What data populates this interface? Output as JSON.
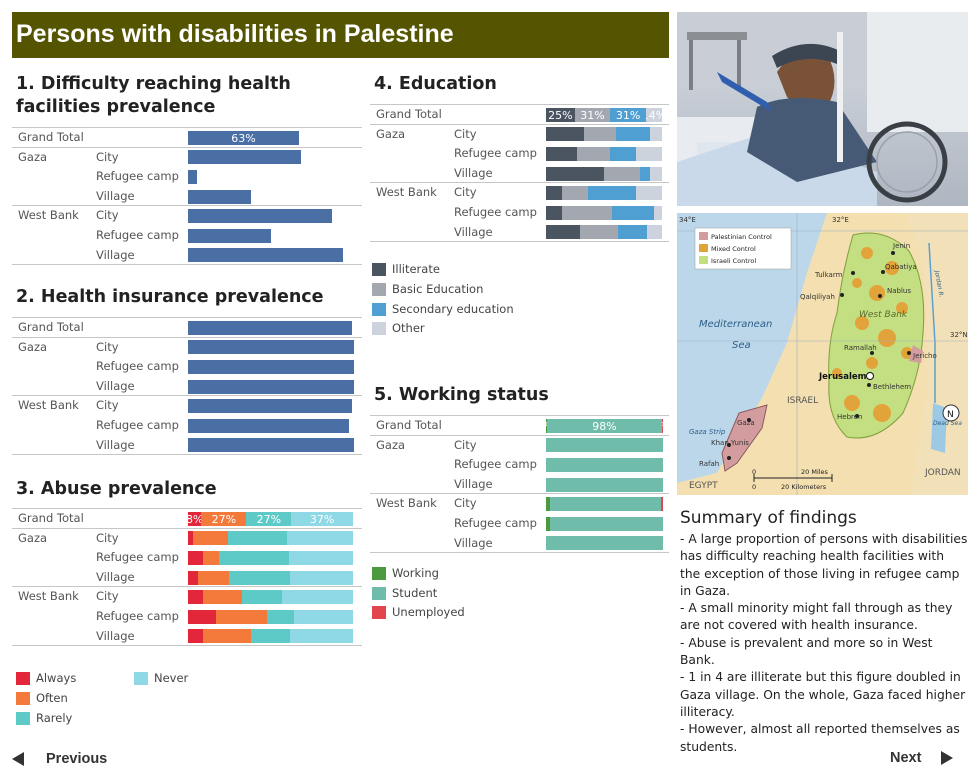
{
  "header": {
    "title": "Persons with disabilities in Palestine"
  },
  "colors": {
    "title_bg": "#555400",
    "health_bar": "#4a6fa5",
    "always": "#e2273a",
    "often": "#f47a3c",
    "rarely": "#5ecac7",
    "never": "#8fd8e6",
    "illiterate": "#4b5562",
    "basic": "#a3a8b0",
    "secondary": "#4f9fd3",
    "other": "#ccd3dc",
    "working": "#4c9a3f",
    "student": "#6fbcab",
    "unemployed": "#e2454e"
  },
  "row_labels": {
    "grand_total": "Grand Total",
    "gaza": "Gaza",
    "west_bank": "West Bank",
    "city": "City",
    "refugee_camp": "Refugee camp",
    "village": "Village"
  },
  "sections": {
    "health_access": "1. Difficulty reaching health facilities prevalence",
    "insurance": "2. Health insurance prevalence",
    "abuse": "3. Abuse prevalence",
    "education": "4. Education",
    "working": "5. Working status"
  },
  "chart_data": [
    {
      "id": "health_access",
      "type": "bar",
      "title": "1. Difficulty reaching health facilities prevalence",
      "categories": [
        "Grand Total",
        "Gaza City",
        "Gaza Refugee camp",
        "Gaza Village",
        "West Bank City",
        "West Bank Refugee camp",
        "West Bank Village"
      ],
      "values": [
        63,
        64,
        5,
        36,
        82,
        47,
        88
      ],
      "value_labels": [
        "63%",
        "",
        "",
        "",
        "",
        "",
        ""
      ],
      "ylim": [
        0,
        100
      ]
    },
    {
      "id": "insurance",
      "type": "bar",
      "title": "2. Health insurance prevalence",
      "categories": [
        "Grand Total",
        "Gaza City",
        "Gaza Refugee camp",
        "Gaza Village",
        "West Bank City",
        "West Bank Refugee camp",
        "West Bank Village"
      ],
      "values": [
        99,
        100,
        100,
        100,
        99,
        97,
        100
      ],
      "ylim": [
        0,
        100
      ]
    },
    {
      "id": "abuse",
      "type": "bar",
      "stacked": true,
      "title": "3. Abuse prevalence",
      "categories": [
        "Grand Total",
        "Gaza City",
        "Gaza Refugee camp",
        "Gaza Village",
        "West Bank City",
        "West Bank Refugee camp",
        "West Bank Village"
      ],
      "series": [
        {
          "name": "Always",
          "color": "#e2273a",
          "values": [
            8,
            3,
            9,
            6,
            9,
            17,
            9
          ],
          "labels": [
            "8%",
            "",
            "",
            "",
            "",
            "",
            ""
          ]
        },
        {
          "name": "Often",
          "color": "#f47a3c",
          "values": [
            27,
            21,
            10,
            19,
            24,
            31,
            29
          ],
          "labels": [
            "27%",
            "",
            "",
            "",
            "",
            "",
            ""
          ]
        },
        {
          "name": "Rarely",
          "color": "#5ecac7",
          "values": [
            27,
            36,
            42,
            37,
            24,
            16,
            24
          ],
          "labels": [
            "27%",
            "",
            "",
            "",
            "",
            "",
            ""
          ]
        },
        {
          "name": "Never",
          "color": "#8fd8e6",
          "values": [
            37,
            40,
            39,
            38,
            43,
            36,
            38
          ],
          "labels": [
            "37%",
            "",
            "",
            "",
            "",
            "",
            ""
          ]
        }
      ]
    },
    {
      "id": "education",
      "type": "bar",
      "stacked": true,
      "title": "4. Education",
      "categories": [
        "Grand Total",
        "Gaza City",
        "Gaza Refugee camp",
        "Gaza Village",
        "West Bank City",
        "West Bank Refugee camp",
        "West Bank Village"
      ],
      "series": [
        {
          "name": "Illiterate",
          "color": "#4b5562",
          "values": [
            25,
            33,
            27,
            50,
            14,
            14,
            29
          ],
          "labels": [
            "25%",
            "",
            "",
            "",
            "",
            "",
            ""
          ]
        },
        {
          "name": "Basic Education",
          "color": "#a3a8b0",
          "values": [
            31,
            27,
            28,
            31,
            22,
            43,
            33
          ],
          "labels": [
            "31%",
            "",
            "",
            "",
            "",
            "",
            ""
          ]
        },
        {
          "name": "Secondary education",
          "color": "#4f9fd3",
          "values": [
            31,
            30,
            23,
            9,
            42,
            36,
            25
          ],
          "labels": [
            "31%",
            "",
            "",
            "",
            "",
            "",
            ""
          ]
        },
        {
          "name": "Other",
          "color": "#ccd3dc",
          "values": [
            14,
            10,
            22,
            10,
            22,
            7,
            13
          ],
          "labels": [
            "14%",
            "",
            "",
            "",
            "",
            "",
            ""
          ]
        }
      ]
    },
    {
      "id": "working",
      "type": "bar",
      "stacked": true,
      "title": "5. Working status",
      "categories": [
        "Grand Total",
        "Gaza City",
        "Gaza Refugee camp",
        "Gaza Village",
        "West Bank City",
        "West Bank Refugee camp",
        "West Bank Village"
      ],
      "series": [
        {
          "name": "Working",
          "color": "#4c9a3f",
          "values": [
            1,
            0,
            0,
            0,
            3,
            3,
            0
          ],
          "labels": [
            "1%",
            "",
            "",
            "",
            "",
            "",
            ""
          ]
        },
        {
          "name": "Student",
          "color": "#6fbcab",
          "values": [
            98,
            100,
            100,
            100,
            95,
            97,
            100
          ],
          "labels": [
            "98%",
            "",
            "",
            "",
            "",
            "",
            ""
          ]
        },
        {
          "name": "Unemployed",
          "color": "#e2454e",
          "values": [
            1,
            0,
            0,
            0,
            2,
            0,
            0
          ],
          "labels": [
            "1%",
            "",
            "",
            "",
            "",
            "",
            ""
          ]
        }
      ]
    }
  ],
  "legends": {
    "abuse": [
      "Always",
      "Often",
      "Rarely",
      "Never"
    ],
    "education": [
      "Illiterate",
      "Basic Education",
      "Secondary education",
      "Other"
    ],
    "working": [
      "Working",
      "Student",
      "Unemployed"
    ]
  },
  "map": {
    "legend": [
      "Palestinian Control",
      "Mixed Control",
      "Israeli Control"
    ],
    "labels": {
      "lon34": "34°E",
      "lon32": "32°E",
      "lat32": "32°N",
      "mediterranean": "Mediterranean",
      "sea": "Sea",
      "israel": "ISRAEL",
      "jordan": "JORDAN",
      "egypt": "EGYPT",
      "west_bank": "West Bank",
      "gaza_strip": "Gaza Strip",
      "dead_sea": "Dead Sea",
      "jordan_river": "Jordan R.",
      "jenin": "Jenin",
      "qabatiya": "Qabatiya",
      "tulkarm": "Tulkarm",
      "nablus": "Nablus",
      "qalqiliyah": "Qalqiliyah",
      "ramallah": "Ramallah",
      "jericho": "Jericho",
      "jerusalem": "Jerusalem",
      "bethlehem": "Bethlehem",
      "hebron": "Hebron",
      "gaza": "Gaza",
      "khan_yunis": "Khan Yunis",
      "rafah": "Rafah",
      "scale_miles": "20 Miles",
      "scale_km": "20 Kilometers",
      "zero": "0",
      "north": "N"
    }
  },
  "summary": {
    "title": "Summary of findings",
    "lines": [
      "- A large proportion of persons with disabilities has difficulty reaching health facilities with the exception of those living in refugee camp in Gaza.",
      "- A small minority might fall through as they are not covered with health insurance.",
      "- Abuse is prevalent and more so in West Bank.",
      "- 1 in 4 are illiterate but this figure doubled in Gaza village. On the whole, Gaza faced higher illiteracy.",
      "- However, almost all reported themselves as students."
    ]
  },
  "nav": {
    "previous": "Previous",
    "next": "Next"
  }
}
